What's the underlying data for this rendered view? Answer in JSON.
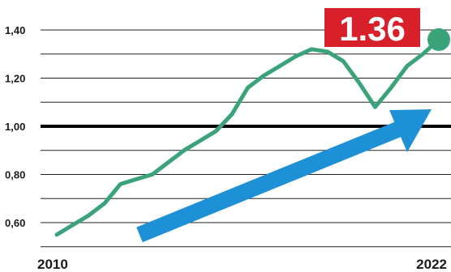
{
  "chart_data": {
    "type": "line",
    "title": "",
    "xlabel": "",
    "ylabel": "",
    "x_start_label": "2010",
    "x_end_label": "2022",
    "ylim": [
      0.52,
      1.45
    ],
    "yticks": [
      0.6,
      0.8,
      1.0,
      1.2,
      1.4
    ],
    "ytick_labels": [
      "0,60",
      "0,80",
      "1,00",
      "1,20",
      "1,40"
    ],
    "x": [
      2010,
      2010.5,
      2011,
      2011.5,
      2012,
      2012.5,
      2013,
      2013.5,
      2014,
      2014.5,
      2015,
      2015.5,
      2016,
      2016.5,
      2017,
      2017.5,
      2018,
      2018.5,
      2019,
      2019.5,
      2020,
      2020.5,
      2021,
      2021.5,
      2022
    ],
    "series": [
      {
        "values": [
          0.55,
          0.59,
          0.63,
          0.68,
          0.76,
          0.78,
          0.8,
          0.85,
          0.9,
          0.94,
          0.98,
          1.05,
          1.16,
          1.21,
          1.25,
          1.29,
          1.32,
          1.31,
          1.27,
          1.18,
          1.08,
          1.16,
          1.25,
          1.3,
          1.36
        ]
      }
    ],
    "reference_line": 1.0,
    "callout_value": "1.36",
    "trend_arrow": true,
    "grid": true,
    "colors": {
      "line": "#3aa37a",
      "endpoint": "#3aa37a",
      "callout_bg": "#d8202a",
      "arrow": "#1e90d6",
      "grid": "#222222",
      "reference": "#000000"
    }
  }
}
